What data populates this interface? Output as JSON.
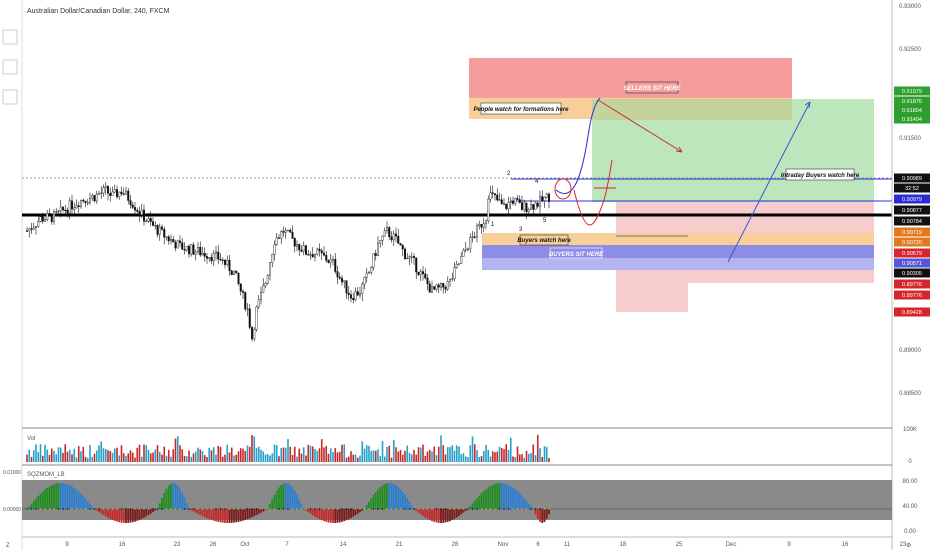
{
  "header": {
    "title": "Australian Dollar/Canadian Dollar, 240, FXCM"
  },
  "price_axis": {
    "ticks": [
      "0.93000",
      "0.92500",
      "0.91500",
      "0.89000",
      "0.88500"
    ],
    "badges": [
      {
        "text": "0.91979",
        "color": "#2e9e2e"
      },
      {
        "text": "0.91876",
        "color": "#2e9e2e"
      },
      {
        "text": "0.91804",
        "color": "#2e9e2e"
      },
      {
        "text": "0.91404",
        "color": "#2e9e2e"
      },
      {
        "text": "0.90989",
        "color": "#111111"
      },
      {
        "text": "32:52",
        "color": "#111111"
      },
      {
        "text": "0.90979",
        "color": "#2c2cd6"
      },
      {
        "text": "0.90877",
        "color": "#111111"
      },
      {
        "text": "0.90784",
        "color": "#111111"
      },
      {
        "text": "0.90719",
        "color": "#e07a20"
      },
      {
        "text": "0.90720",
        "color": "#e07a20"
      },
      {
        "text": "0.90579",
        "color": "#d6262b"
      },
      {
        "text": "0.90571",
        "color": "#5656d6"
      },
      {
        "text": "0.90305",
        "color": "#111111"
      },
      {
        "text": "0.89776",
        "color": "#d6262b"
      },
      {
        "text": "0.89776",
        "color": "#d6262b"
      },
      {
        "text": "0.89428",
        "color": "#d6262b"
      }
    ]
  },
  "annotations": {
    "sellers": "SELLERS SIT HERE",
    "people": "People watch for formations here",
    "intraday": "Intraday Buyers watch here",
    "buyers_watch": "Buyers watch here",
    "buyers_sit": "BUYERS SIT HERE",
    "wave": [
      "1",
      "2",
      "3",
      "4",
      "5"
    ]
  },
  "volume": {
    "label": "Vol",
    "ticks": [
      "100K",
      "0"
    ]
  },
  "indicator": {
    "label": "SQZMOM_LB",
    "left_ticks": [
      "0.01000",
      "0.00000"
    ],
    "right_ticks": [
      "80.00",
      "40.00",
      "0.00"
    ]
  },
  "time_axis": {
    "labels": [
      "9",
      "16",
      "23",
      "26",
      "Oct",
      "7",
      "14",
      "21",
      "28",
      "Nov",
      "6",
      "11",
      "18",
      "25",
      "Dec",
      "9",
      "16",
      "23"
    ]
  },
  "colors": {
    "up": "#26a69a",
    "down": "#ef5350",
    "sellers": "#f59d9d",
    "people": "#f8cf99",
    "intraday": "#bde6bd",
    "buyers_sit": "#8d8de8"
  },
  "chart_data": {
    "type": "candlestick",
    "symbol": "Australian Dollar/Canadian Dollar",
    "interval": "240",
    "source": "FXCM",
    "y_range": [
      0.8843,
      0.9303
    ],
    "x_labels": [
      "9",
      "16",
      "23",
      "26",
      "Oct",
      "7",
      "14",
      "21",
      "28",
      "Nov",
      "6",
      "11",
      "18",
      "25",
      "Dec",
      "9",
      "16",
      "23"
    ],
    "close_path": [
      [
        0,
        0.9055
      ],
      [
        6,
        0.9068
      ],
      [
        12,
        0.907
      ],
      [
        18,
        0.908
      ],
      [
        24,
        0.9088
      ],
      [
        30,
        0.9092
      ],
      [
        35,
        0.9098
      ],
      [
        38,
        0.9092
      ],
      [
        42,
        0.9098
      ],
      [
        46,
        0.9088
      ],
      [
        51,
        0.9072
      ],
      [
        56,
        0.906
      ],
      [
        62,
        0.9048
      ],
      [
        68,
        0.9038
      ],
      [
        74,
        0.9034
      ],
      [
        80,
        0.903
      ],
      [
        86,
        0.9025
      ],
      [
        92,
        0.901
      ],
      [
        98,
        0.897
      ],
      [
        100,
        0.894
      ],
      [
        102,
        0.897
      ],
      [
        106,
        0.9
      ],
      [
        110,
        0.9045
      ],
      [
        114,
        0.9055
      ],
      [
        118,
        0.9045
      ],
      [
        124,
        0.9032
      ],
      [
        130,
        0.903
      ],
      [
        136,
        0.902
      ],
      [
        140,
        0.9
      ],
      [
        144,
        0.8985
      ],
      [
        148,
        0.899
      ],
      [
        152,
        0.901
      ],
      [
        156,
        0.904
      ],
      [
        160,
        0.9054
      ],
      [
        164,
        0.9045
      ],
      [
        168,
        0.903
      ],
      [
        172,
        0.902
      ],
      [
        176,
        0.9005
      ],
      [
        180,
        0.899
      ],
      [
        184,
        0.8993
      ],
      [
        188,
        0.9
      ],
      [
        192,
        0.902
      ],
      [
        196,
        0.904
      ],
      [
        200,
        0.9055
      ],
      [
        204,
        0.907
      ],
      [
        205,
        0.9095
      ],
      [
        208,
        0.909
      ],
      [
        212,
        0.908
      ],
      [
        216,
        0.9088
      ],
      [
        220,
        0.908
      ],
      [
        224,
        0.9082
      ],
      [
        228,
        0.9086
      ],
      [
        232,
        0.9092
      ]
    ],
    "levels": [
      0.90989,
      0.90979,
      0.90877,
      0.90784,
      0.90579,
      0.90305
    ],
    "volume_range": [
      0,
      100000
    ],
    "indicator_range": [
      -0.01,
      0.01
    ]
  }
}
